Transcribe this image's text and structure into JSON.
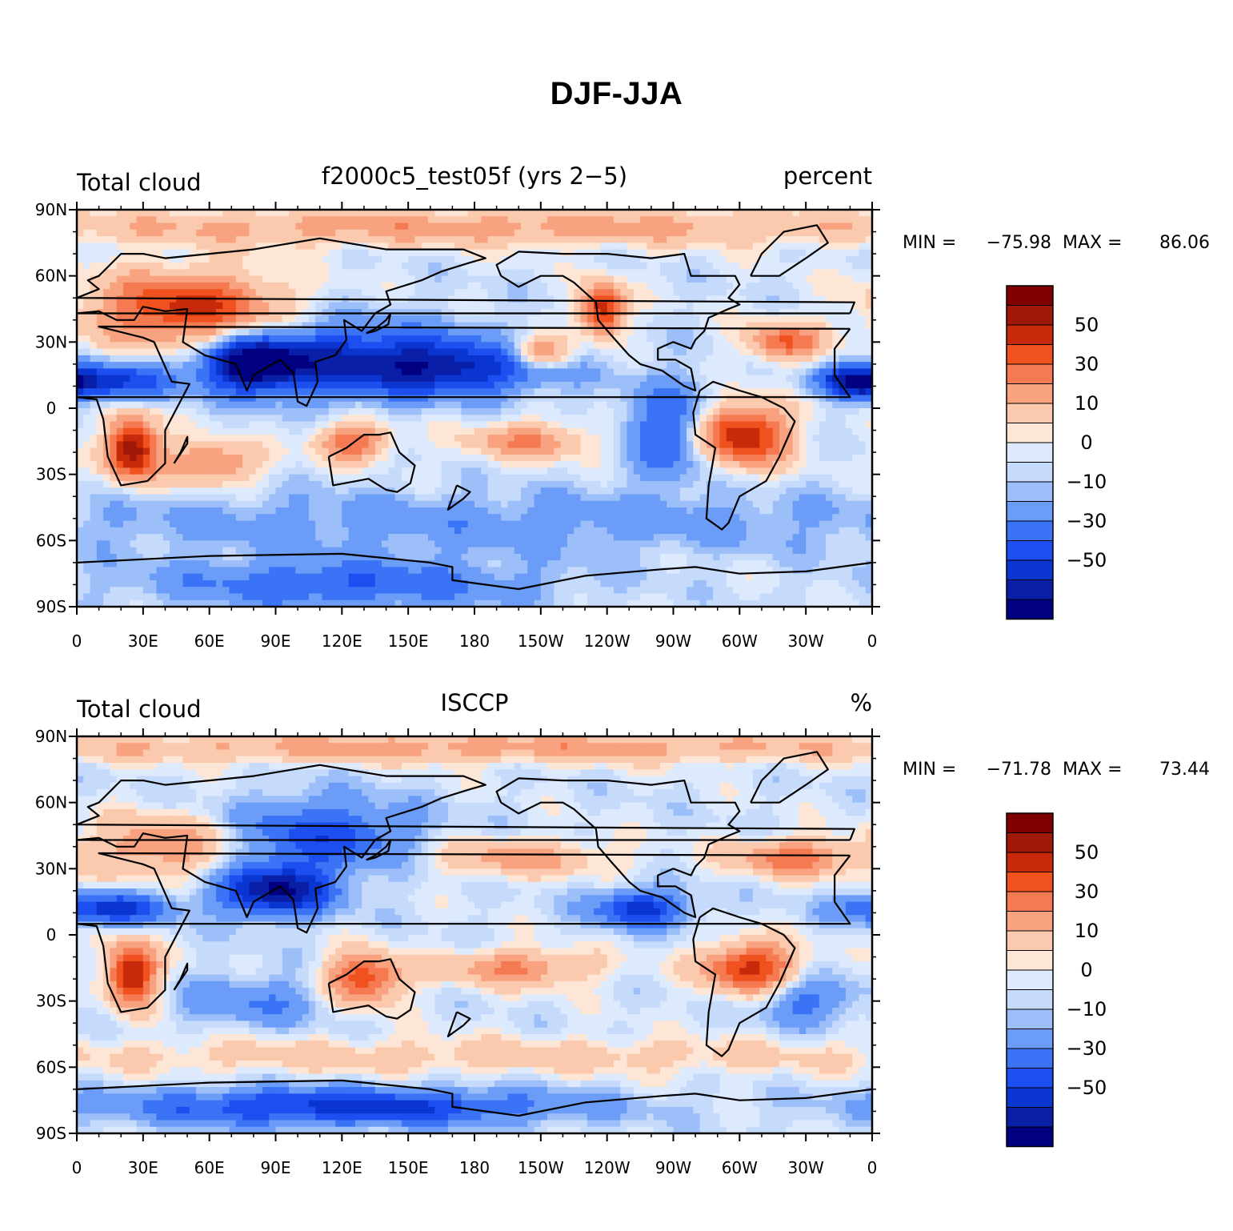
{
  "figure_title": "DJF-JJA",
  "chart_data": [
    {
      "type": "heatmap",
      "subtype": "filled-contour-map",
      "title_left": "Total cloud",
      "title_center": "f2000c5_test05f (yrs 2−5)",
      "title_right": "percent",
      "lat_ticks": [
        "90N",
        "60N",
        "30N",
        "0",
        "30S",
        "60S",
        "90S"
      ],
      "lon_ticks": [
        "0",
        "30E",
        "60E",
        "90E",
        "120E",
        "150E",
        "180",
        "150W",
        "120W",
        "90W",
        "60W",
        "30W",
        "0"
      ],
      "lat_range": [
        -90,
        90
      ],
      "lon_range": [
        0,
        360
      ],
      "min_label": "MIN =",
      "min_value": "−75.98",
      "max_label": "MAX =",
      "max_value": "86.06",
      "colorbar_labels": [
        "50",
        "30",
        "10",
        "0",
        "−10",
        "−30",
        "−50"
      ],
      "anomalies": [
        {
          "lon": 50,
          "lat": 45,
          "amp": 55,
          "slon": 30,
          "slat": 12
        },
        {
          "lon": 25,
          "lat": -18,
          "amp": 70,
          "slon": 8,
          "slat": 10
        },
        {
          "lon": 120,
          "lat": 22,
          "amp": -45,
          "slon": 40,
          "slat": 12
        },
        {
          "lon": 80,
          "lat": 20,
          "amp": -60,
          "slon": 15,
          "slat": 8
        },
        {
          "lon": 15,
          "lat": 12,
          "amp": -40,
          "slon": 20,
          "slat": 6
        },
        {
          "lon": 125,
          "lat": -15,
          "amp": 40,
          "slon": 12,
          "slat": 6
        },
        {
          "lon": 60,
          "lat": -25,
          "amp": 35,
          "slon": 15,
          "slat": 7
        },
        {
          "lon": 300,
          "lat": -12,
          "amp": 65,
          "slon": 15,
          "slat": 10
        },
        {
          "lon": 238,
          "lat": 45,
          "amp": 60,
          "slon": 7,
          "slat": 8
        },
        {
          "lon": 210,
          "lat": 25,
          "amp": 40,
          "slon": 10,
          "slat": 5
        },
        {
          "lon": 320,
          "lat": 30,
          "amp": 40,
          "slon": 12,
          "slat": 6
        },
        {
          "lon": 175,
          "lat": 18,
          "amp": -40,
          "slon": 30,
          "slat": 8
        },
        {
          "lon": 270,
          "lat": -10,
          "amp": -35,
          "slon": 15,
          "slat": 15
        },
        {
          "lon": 352,
          "lat": 12,
          "amp": -45,
          "slon": 12,
          "slat": 5
        },
        {
          "lon": 205,
          "lat": -15,
          "amp": 30,
          "slon": 20,
          "slat": 6
        },
        {
          "lon": 180,
          "lat": -52,
          "amp": -15,
          "slon": 180,
          "slat": 10
        },
        {
          "lon": 120,
          "lat": -80,
          "amp": -30,
          "slon": 60,
          "slat": 8
        },
        {
          "lon": 180,
          "lat": 82,
          "amp": 25,
          "slon": 180,
          "slat": 6
        }
      ]
    },
    {
      "type": "heatmap",
      "subtype": "filled-contour-map",
      "title_left": "Total cloud",
      "title_center": "ISCCP",
      "title_right": "%",
      "lat_ticks": [
        "90N",
        "60N",
        "30N",
        "0",
        "30S",
        "60S",
        "90S"
      ],
      "lon_ticks": [
        "0",
        "30E",
        "60E",
        "90E",
        "120E",
        "150E",
        "180",
        "150W",
        "120W",
        "90W",
        "60W",
        "30W",
        "0"
      ],
      "lat_range": [
        -90,
        90
      ],
      "lon_range": [
        0,
        360
      ],
      "min_label": "MIN =",
      "min_value": "−71.78",
      "max_label": "MAX =",
      "max_value": "73.44",
      "colorbar_labels": [
        "50",
        "30",
        "10",
        "0",
        "−10",
        "−30",
        "−50"
      ],
      "anomalies": [
        {
          "lon": 25,
          "lat": -18,
          "amp": 65,
          "slon": 8,
          "slat": 10
        },
        {
          "lon": 305,
          "lat": -15,
          "amp": 55,
          "slon": 15,
          "slat": 8
        },
        {
          "lon": 130,
          "lat": -20,
          "amp": 50,
          "slon": 12,
          "slat": 8
        },
        {
          "lon": 90,
          "lat": 20,
          "amp": -60,
          "slon": 18,
          "slat": 8
        },
        {
          "lon": 110,
          "lat": 45,
          "amp": -35,
          "slon": 30,
          "slat": 12
        },
        {
          "lon": 15,
          "lat": 12,
          "amp": -45,
          "slon": 20,
          "slat": 5
        },
        {
          "lon": 255,
          "lat": 12,
          "amp": -45,
          "slon": 15,
          "slat": 6
        },
        {
          "lon": 325,
          "lat": 35,
          "amp": 35,
          "slon": 20,
          "slat": 6
        },
        {
          "lon": 40,
          "lat": 40,
          "amp": 30,
          "slon": 25,
          "slat": 10
        },
        {
          "lon": 200,
          "lat": 35,
          "amp": 25,
          "slon": 30,
          "slat": 6
        },
        {
          "lon": 200,
          "lat": -15,
          "amp": 30,
          "slon": 25,
          "slat": 6
        },
        {
          "lon": 180,
          "lat": -55,
          "amp": 15,
          "slon": 180,
          "slat": 6
        },
        {
          "lon": 120,
          "lat": -78,
          "amp": -45,
          "slon": 70,
          "slat": 6
        },
        {
          "lon": 180,
          "lat": 85,
          "amp": 25,
          "slon": 180,
          "slat": 5
        },
        {
          "lon": 80,
          "lat": -30,
          "amp": -20,
          "slon": 25,
          "slat": 8
        },
        {
          "lon": 330,
          "lat": -30,
          "amp": -25,
          "slon": 15,
          "slat": 8
        }
      ]
    }
  ],
  "palette": [
    "#000080",
    "#0a1fa8",
    "#0b35d0",
    "#1d4ef0",
    "#3a73f5",
    "#6a9cf8",
    "#9dbff9",
    "#c6dbfb",
    "#ddeafd",
    "#fde6d6",
    "#fbc9ad",
    "#f8a280",
    "#f57a52",
    "#f0511f",
    "#c62a0a",
    "#a01808",
    "#7f0000"
  ]
}
